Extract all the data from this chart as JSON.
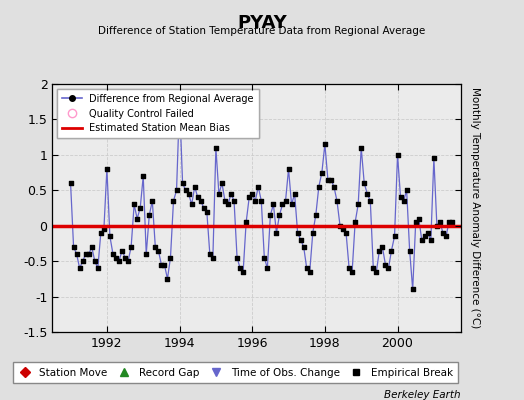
{
  "title": "PYAY",
  "subtitle": "Difference of Station Temperature Data from Regional Average",
  "ylabel": "Monthly Temperature Anomaly Difference (°C)",
  "credit": "Berkeley Earth",
  "ylim": [
    -1.5,
    2.0
  ],
  "xlim": [
    1990.5,
    2001.75
  ],
  "mean_bias": 0.0,
  "fig_bg_color": "#e0e0e0",
  "plot_bg_color": "#ebebeb",
  "line_color": "#6666cc",
  "dot_color": "#000000",
  "bias_color": "#dd0000",
  "xticks": [
    1992,
    1994,
    1996,
    1998,
    2000
  ],
  "yticks": [
    -1.5,
    -1.0,
    -0.5,
    0.0,
    0.5,
    1.0,
    1.5,
    2.0
  ],
  "data": {
    "times": [
      1991.0,
      1991.083,
      1991.167,
      1991.25,
      1991.333,
      1991.417,
      1991.5,
      1991.583,
      1991.667,
      1991.75,
      1991.833,
      1991.917,
      1992.0,
      1992.083,
      1992.167,
      1992.25,
      1992.333,
      1992.417,
      1992.5,
      1992.583,
      1992.667,
      1992.75,
      1992.833,
      1992.917,
      1993.0,
      1993.083,
      1993.167,
      1993.25,
      1993.333,
      1993.417,
      1993.5,
      1993.583,
      1993.667,
      1993.75,
      1993.833,
      1993.917,
      1994.0,
      1994.083,
      1994.167,
      1994.25,
      1994.333,
      1994.417,
      1994.5,
      1994.583,
      1994.667,
      1994.75,
      1994.833,
      1994.917,
      1995.0,
      1995.083,
      1995.167,
      1995.25,
      1995.333,
      1995.417,
      1995.5,
      1995.583,
      1995.667,
      1995.75,
      1995.833,
      1995.917,
      1996.0,
      1996.083,
      1996.167,
      1996.25,
      1996.333,
      1996.417,
      1996.5,
      1996.583,
      1996.667,
      1996.75,
      1996.833,
      1996.917,
      1997.0,
      1997.083,
      1997.167,
      1997.25,
      1997.333,
      1997.417,
      1997.5,
      1997.583,
      1997.667,
      1997.75,
      1997.833,
      1997.917,
      1998.0,
      1998.083,
      1998.167,
      1998.25,
      1998.333,
      1998.417,
      1998.5,
      1998.583,
      1998.667,
      1998.75,
      1998.833,
      1998.917,
      1999.0,
      1999.083,
      1999.167,
      1999.25,
      1999.333,
      1999.417,
      1999.5,
      1999.583,
      1999.667,
      1999.75,
      1999.833,
      1999.917,
      2000.0,
      2000.083,
      2000.167,
      2000.25,
      2000.333,
      2000.417,
      2000.5,
      2000.583,
      2000.667,
      2000.75,
      2000.833,
      2000.917,
      2001.0,
      2001.083,
      2001.167,
      2001.25,
      2001.333,
      2001.417,
      2001.5
    ],
    "values": [
      0.6,
      -0.3,
      -0.4,
      -0.6,
      -0.5,
      -0.4,
      -0.4,
      -0.3,
      -0.5,
      -0.6,
      -0.1,
      -0.05,
      0.8,
      -0.15,
      -0.4,
      -0.45,
      -0.5,
      -0.35,
      -0.45,
      -0.5,
      -0.3,
      0.3,
      0.1,
      0.25,
      0.7,
      -0.4,
      0.15,
      0.35,
      -0.3,
      -0.35,
      -0.55,
      -0.55,
      -0.75,
      -0.45,
      0.35,
      0.5,
      1.75,
      0.6,
      0.5,
      0.45,
      0.3,
      0.55,
      0.4,
      0.35,
      0.25,
      0.2,
      -0.4,
      -0.45,
      1.1,
      0.45,
      0.6,
      0.35,
      0.3,
      0.45,
      0.35,
      -0.45,
      -0.6,
      -0.65,
      0.05,
      0.4,
      0.45,
      0.35,
      0.55,
      0.35,
      -0.45,
      -0.6,
      0.15,
      0.3,
      -0.1,
      0.15,
      0.3,
      0.35,
      0.8,
      0.3,
      0.45,
      -0.1,
      -0.2,
      -0.3,
      -0.6,
      -0.65,
      -0.1,
      0.15,
      0.55,
      0.75,
      1.15,
      0.65,
      0.65,
      0.55,
      0.35,
      0.0,
      -0.05,
      -0.1,
      -0.6,
      -0.65,
      0.05,
      0.3,
      1.1,
      0.6,
      0.45,
      0.35,
      -0.6,
      -0.65,
      -0.35,
      -0.3,
      -0.55,
      -0.6,
      -0.35,
      -0.15,
      1.0,
      0.4,
      0.35,
      0.5,
      -0.35,
      -0.9,
      0.05,
      0.1,
      -0.2,
      -0.15,
      -0.1,
      -0.2,
      0.95,
      0.0,
      0.05,
      -0.1,
      -0.15,
      0.05,
      0.05
    ]
  }
}
